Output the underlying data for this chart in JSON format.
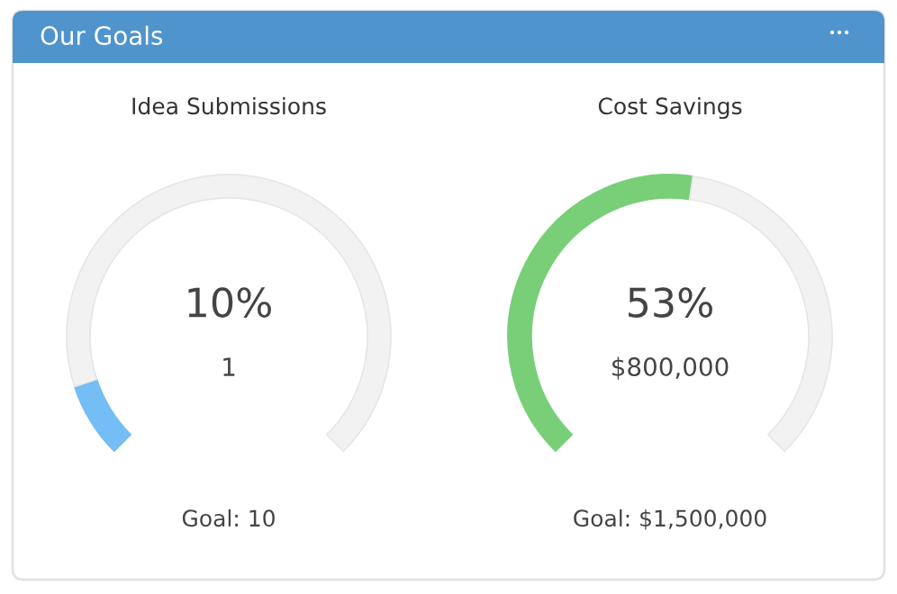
{
  "chart_data": [
    {
      "type": "other",
      "title": "Our Goals"
    },
    {
      "type": "donut",
      "title": "Idea Submissions",
      "categories": [
        null,
        null
      ],
      "values": [
        10,
        90
      ],
      "colors": [
        "#74bdf5",
        "#f2f2f2"
      ],
      "annotations": [
        "10%",
        "1",
        "Goal: 10"
      ]
    },
    {
      "type": "donut",
      "title": "Cost Savings",
      "categories": [
        null,
        null
      ],
      "values": [
        53,
        47
      ],
      "colors": [
        "#78cf78",
        "#f2f2f2"
      ],
      "annotations": [
        "53%",
        "$800,000",
        "Goal: $1,500,000"
      ]
    }
  ]
}
